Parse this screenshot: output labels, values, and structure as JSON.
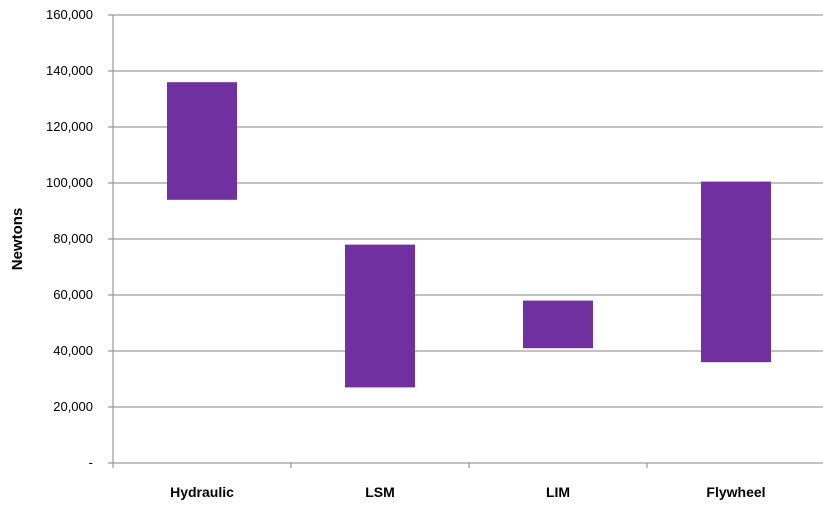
{
  "chart_data": {
    "type": "bar",
    "subtype": "floating-range",
    "title": "",
    "xlabel": "",
    "ylabel": "Newtons",
    "ylim": [
      0,
      160000
    ],
    "ytick_values": [
      0,
      20000,
      40000,
      60000,
      80000,
      100000,
      120000,
      140000,
      160000
    ],
    "ytick_labels": [
      "-",
      "20,000",
      "40,000",
      "60,000",
      "80,000",
      "100,000",
      "120,000",
      "140,000",
      "160,000"
    ],
    "categories": [
      "Hydraulic",
      "LSM",
      "LIM",
      "Flywheel"
    ],
    "ranges": [
      {
        "low": 94000,
        "high": 136000
      },
      {
        "low": 27000,
        "high": 78000
      },
      {
        "low": 41000,
        "high": 58000
      },
      {
        "low": 36000,
        "high": 100500
      }
    ],
    "bar_color": "#7030a0",
    "grid": true,
    "legend": "none"
  }
}
